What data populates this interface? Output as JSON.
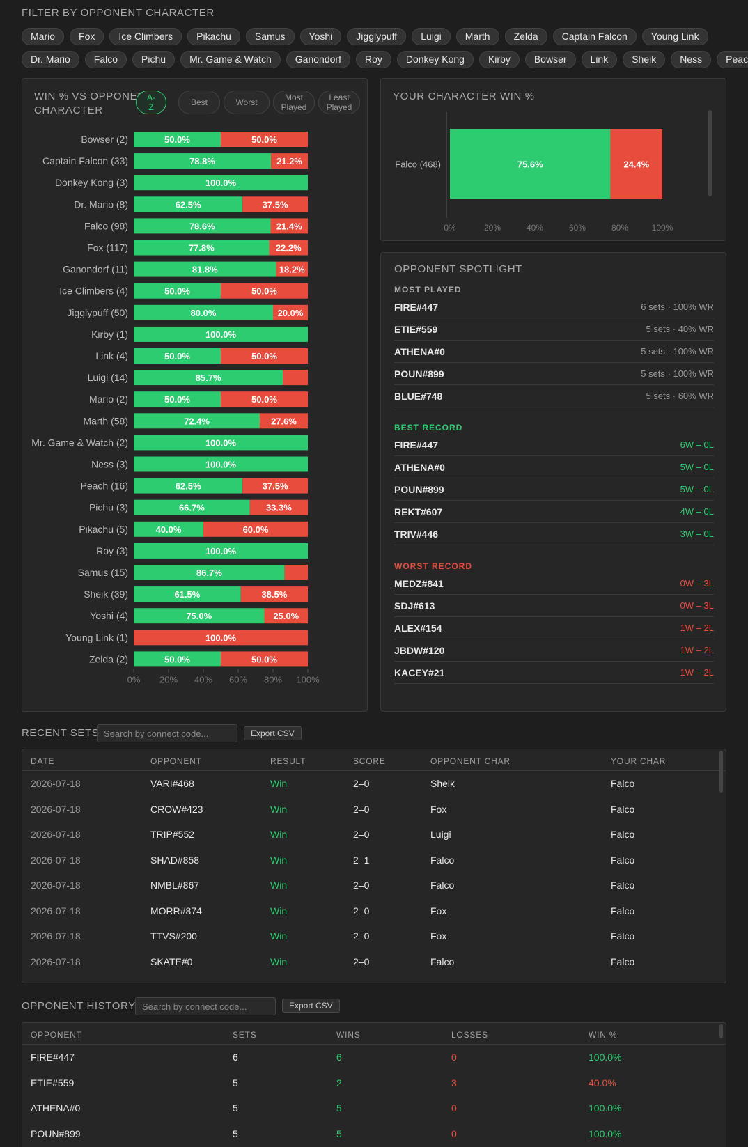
{
  "filter": {
    "title": "FILTER BY OPPONENT CHARACTER",
    "row1": [
      "Mario",
      "Fox",
      "Ice Climbers",
      "Pikachu",
      "Samus",
      "Yoshi",
      "Jigglypuff",
      "Luigi",
      "Marth",
      "Zelda",
      "Captain Falcon",
      "Young Link"
    ],
    "row2": [
      "Dr. Mario",
      "Falco",
      "Pichu",
      "Mr. Game & Watch",
      "Ganondorf",
      "Roy",
      "Donkey Kong",
      "Kirby",
      "Bowser",
      "Link",
      "Sheik",
      "Ness",
      "Peach"
    ]
  },
  "winvs": {
    "title_line1": "WIN % VS OPPONENT",
    "title_line2": "CHARACTER",
    "sort": [
      {
        "l1": "A-",
        "l2": "Z",
        "active": true
      },
      {
        "l1": "Best",
        "l2": "",
        "active": false
      },
      {
        "l1": "Worst",
        "l2": "",
        "active": false
      },
      {
        "l1": "Most",
        "l2": "Played",
        "active": false
      },
      {
        "l1": "Least",
        "l2": "Played",
        "active": false
      }
    ]
  },
  "chart_data": [
    {
      "type": "bar",
      "orientation": "horizontal",
      "stacked": true,
      "categories": [
        "Bowser (2)",
        "Captain Falcon (33)",
        "Donkey Kong (3)",
        "Dr. Mario (8)",
        "Falco (98)",
        "Fox (117)",
        "Ganondorf (11)",
        "Ice Climbers (4)",
        "Jigglypuff (50)",
        "Kirby (1)",
        "Link (4)",
        "Luigi (14)",
        "Mario (2)",
        "Marth (58)",
        "Mr. Game & Watch (2)",
        "Ness (3)",
        "Peach (16)",
        "Pichu (3)",
        "Pikachu (5)",
        "Roy (3)",
        "Samus (15)",
        "Sheik (39)",
        "Yoshi (4)",
        "Young Link (1)",
        "Zelda (2)"
      ],
      "series": [
        {
          "name": "Wins",
          "color": "#2ecc71",
          "values": [
            50.0,
            78.8,
            100.0,
            62.5,
            78.6,
            77.8,
            81.8,
            50.0,
            80.0,
            100.0,
            50.0,
            85.7,
            50.0,
            72.4,
            100.0,
            100.0,
            62.5,
            66.7,
            40.0,
            100.0,
            86.7,
            61.5,
            75.0,
            0.0,
            50.0
          ]
        },
        {
          "name": "Losses",
          "color": "#e74c3c",
          "values": [
            50.0,
            21.2,
            0.0,
            37.5,
            21.4,
            22.2,
            18.2,
            50.0,
            20.0,
            0.0,
            50.0,
            14.3,
            50.0,
            27.6,
            0.0,
            0.0,
            37.5,
            33.3,
            60.0,
            0.0,
            13.3,
            38.5,
            25.0,
            100.0,
            50.0
          ]
        }
      ],
      "data_labels": {
        "wins": [
          "50.0%",
          "78.8%",
          "100.0%",
          "62.5%",
          "78.6%",
          "77.8%",
          "81.8%",
          "50.0%",
          "80.0%",
          "100.0%",
          "50.0%",
          "85.7%",
          "50.0%",
          "72.4%",
          "100.0%",
          "100.0%",
          "62.5%",
          "66.7%",
          "40.0%",
          "100.0%",
          "86.7%",
          "61.5%",
          "75.0%",
          "",
          "50.0%"
        ],
        "losses": [
          "50.0%",
          "21.2%",
          "",
          "37.5%",
          "21.4%",
          "22.2%",
          "18.2%",
          "50.0%",
          "20.0%",
          "",
          "50.0%",
          "",
          "50.0%",
          "27.6%",
          "",
          "",
          "37.5%",
          "33.3%",
          "60.0%",
          "",
          "",
          "38.5%",
          "25.0%",
          "100.0%",
          "50.0%"
        ]
      },
      "xticks": [
        "0%",
        "20%",
        "40%",
        "60%",
        "80%",
        "100%"
      ],
      "xlim": [
        0,
        100
      ]
    },
    {
      "type": "bar",
      "orientation": "horizontal",
      "stacked": true,
      "title": "YOUR CHARACTER WIN %",
      "categories": [
        "Falco (468)"
      ],
      "series": [
        {
          "name": "Wins",
          "color": "#2ecc71",
          "values": [
            75.6
          ]
        },
        {
          "name": "Losses",
          "color": "#e74c3c",
          "values": [
            24.4
          ]
        }
      ],
      "data_labels": {
        "wins": [
          "75.6%"
        ],
        "losses": [
          "24.4%"
        ]
      },
      "xticks": [
        "0%",
        "20%",
        "40%",
        "60%",
        "80%",
        "100%"
      ],
      "xlim": [
        0,
        100
      ]
    }
  ],
  "spotlight": {
    "title": "OPPONENT SPOTLIGHT",
    "most_played_label": "MOST PLAYED",
    "most_played": [
      {
        "code": "FIRE#447",
        "stat": "6 sets · 100% WR"
      },
      {
        "code": "ETIE#559",
        "stat": "5 sets · 40% WR"
      },
      {
        "code": "ATHENA#0",
        "stat": "5 sets · 100% WR"
      },
      {
        "code": "POUN#899",
        "stat": "5 sets · 100% WR"
      },
      {
        "code": "BLUE#748",
        "stat": "5 sets · 60% WR"
      }
    ],
    "best_label": "BEST RECORD",
    "best": [
      {
        "code": "FIRE#447",
        "stat": "6W – 0L"
      },
      {
        "code": "ATHENA#0",
        "stat": "5W – 0L"
      },
      {
        "code": "POUN#899",
        "stat": "5W – 0L"
      },
      {
        "code": "REKT#607",
        "stat": "4W – 0L"
      },
      {
        "code": "TRIV#446",
        "stat": "3W – 0L"
      }
    ],
    "worst_label": "WORST RECORD",
    "worst": [
      {
        "code": "MEDZ#841",
        "stat": "0W – 3L"
      },
      {
        "code": "SDJ#613",
        "stat": "0W – 3L"
      },
      {
        "code": "ALEX#154",
        "stat": "1W – 2L"
      },
      {
        "code": "JBDW#120",
        "stat": "1W – 2L"
      },
      {
        "code": "KACEY#21",
        "stat": "1W – 2L"
      }
    ]
  },
  "recent": {
    "title": "RECENT SETS",
    "search_placeholder": "Search by connect code...",
    "export_label": "Export CSV",
    "headers": [
      "DATE",
      "OPPONENT",
      "RESULT",
      "SCORE",
      "OPPONENT CHAR",
      "YOUR CHAR"
    ],
    "rows": [
      [
        "2026-07-18",
        "VARI#468",
        "Win",
        "2–0",
        "Sheik",
        "Falco"
      ],
      [
        "2026-07-18",
        "CROW#423",
        "Win",
        "2–0",
        "Fox",
        "Falco"
      ],
      [
        "2026-07-18",
        "TRIP#552",
        "Win",
        "2–0",
        "Luigi",
        "Falco"
      ],
      [
        "2026-07-18",
        "SHAD#858",
        "Win",
        "2–1",
        "Falco",
        "Falco"
      ],
      [
        "2026-07-18",
        "NMBL#867",
        "Win",
        "2–0",
        "Falco",
        "Falco"
      ],
      [
        "2026-07-18",
        "MORR#874",
        "Win",
        "2–0",
        "Fox",
        "Falco"
      ],
      [
        "2026-07-18",
        "TTVS#200",
        "Win",
        "2–0",
        "Fox",
        "Falco"
      ],
      [
        "2026-07-18",
        "SKATE#0",
        "Win",
        "2–0",
        "Falco",
        "Falco"
      ]
    ]
  },
  "history": {
    "title": "OPPONENT HISTORY",
    "search_placeholder": "Search by connect code...",
    "export_label": "Export CSV",
    "headers": [
      "OPPONENT",
      "SETS",
      "WINS",
      "LOSSES",
      "WIN %"
    ],
    "rows": [
      [
        "FIRE#447",
        "6",
        "6",
        "0",
        "100.0%"
      ],
      [
        "ETIE#559",
        "5",
        "2",
        "3",
        "40.0%"
      ],
      [
        "ATHENA#0",
        "5",
        "5",
        "0",
        "100.0%"
      ],
      [
        "POUN#899",
        "5",
        "5",
        "0",
        "100.0%"
      ]
    ]
  },
  "colors": {
    "win": "#2ecc71",
    "loss": "#e74c3c"
  }
}
